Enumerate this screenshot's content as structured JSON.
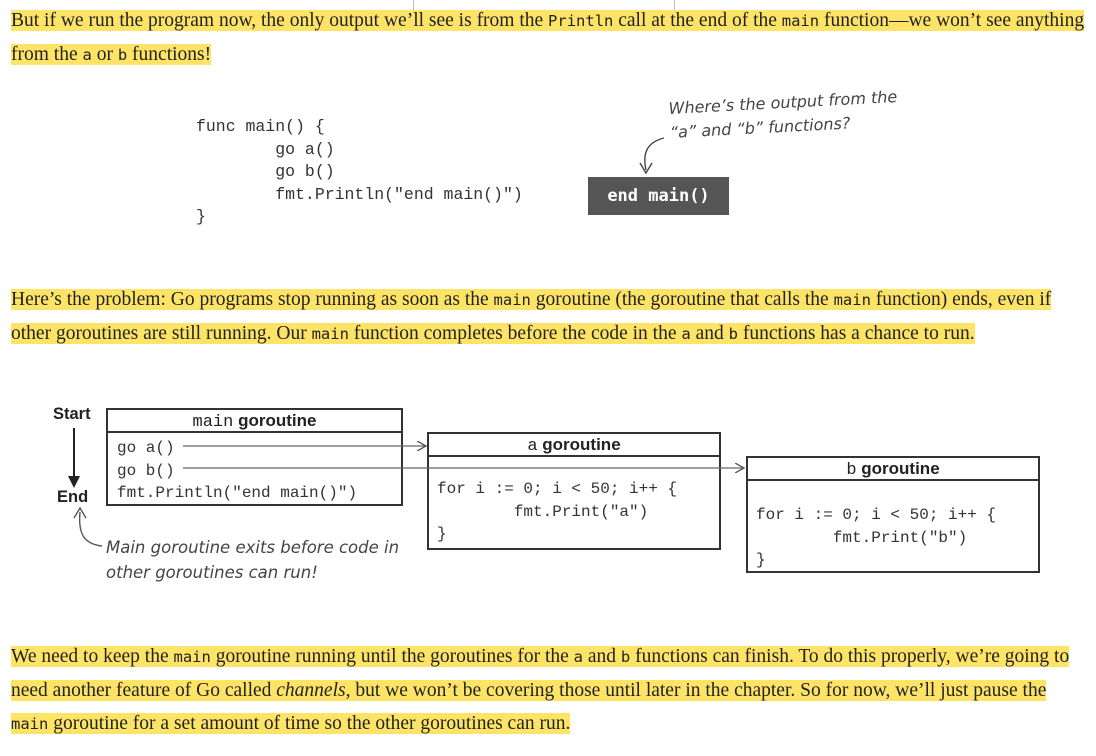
{
  "para1": {
    "t1": "But if we run the program now, the only output we’ll see is from the ",
    "c1": "Println",
    "t2": " call at the end of the ",
    "c2": "main",
    "t3": " function—we won’t see anything from the ",
    "c3": "a",
    "t4": " or ",
    "c4": "b",
    "t5": " functions!"
  },
  "code_example": {
    "lines": [
      "func main() {",
      "        go a()",
      "        go b()",
      "        fmt.Println(\"end main()\")",
      "}"
    ],
    "output": "end main()",
    "annotation_line1": "Where’s the output from the",
    "annotation_line2": "“a” and “b” functions?"
  },
  "para2": {
    "t1": "Here’s the problem: Go programs stop running as soon as the ",
    "c1": "main",
    "t2": " goroutine (the goroutine that calls the ",
    "c2": "main",
    "t3": " function) ends, even if other goroutines are still running. Our ",
    "c3": "main",
    "t4": " function completes before the code in the ",
    "c4": "a",
    "t5": " and ",
    "c5": "b",
    "t6": " functions has a chance to run."
  },
  "diagram": {
    "start_label": "Start",
    "end_label": "End",
    "main_box": {
      "name": "main",
      "suffix": " goroutine",
      "lines": [
        "go a()",
        "go b()",
        "fmt.Println(\"end main()\")"
      ]
    },
    "a_box": {
      "name": "a",
      "suffix": " goroutine",
      "lines": [
        "for i := 0; i < 50; i++ {",
        "        fmt.Print(\"a\")",
        "}"
      ]
    },
    "b_box": {
      "name": "b",
      "suffix": " goroutine",
      "lines": [
        "for i := 0; i < 50; i++ {",
        "        fmt.Print(\"b\")",
        "}"
      ]
    },
    "note_line1": "Main goroutine exits before code in",
    "note_line2": "other goroutines can run!"
  },
  "para3": {
    "t1": "We need to keep the ",
    "c1": "main",
    "t2": " goroutine running until the goroutines for the ",
    "c2": "a",
    "t3": " and ",
    "c3": "b",
    "t4": " functions can finish. To do this properly, we’re going to need another feature of Go called ",
    "em": "channels",
    "t5": ", but we won’t be covering those until later in the chapter. So for now, we’ll just pause the ",
    "c4": "main",
    "t6": " goroutine for a set amount of time so the other goroutines can run."
  }
}
